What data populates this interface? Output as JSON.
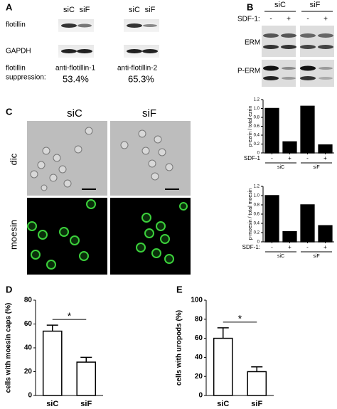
{
  "panel_a": {
    "label": "A",
    "lanes": [
      "siC",
      "siF",
      "siC",
      "siF"
    ],
    "rows": [
      "flotillin",
      "GAPDH"
    ],
    "suppression_label": [
      "flotillin",
      "suppression:"
    ],
    "antibodies": [
      "anti-flotillin-1",
      "anti-flotillin-2"
    ],
    "suppression": [
      "53.4%",
      "65.3%"
    ]
  },
  "panel_b": {
    "label": "B",
    "groups": [
      "siC",
      "siF"
    ],
    "row_label": "SDF-1:",
    "treatments": [
      "-",
      "+",
      "-",
      "+"
    ],
    "rows": [
      "ERM",
      "P-ERM"
    ]
  },
  "panel_c": {
    "label": "C",
    "columns": [
      "siC",
      "siF"
    ],
    "rows": [
      "dic",
      "moesin"
    ]
  },
  "panel_d": {
    "label": "D"
  },
  "panel_e": {
    "label": "E"
  },
  "chart_data": [
    {
      "type": "bar",
      "y_label": "p-ezrin / total ezrin",
      "row_label": "SDF-1",
      "categories": [
        "-",
        "+",
        "-",
        "+"
      ],
      "groups": [
        "siC",
        "siF"
      ],
      "values": [
        1.0,
        0.25,
        1.05,
        0.18
      ],
      "color": "#000000",
      "ylim": [
        0,
        1.2
      ],
      "yticks": [
        0,
        0.2,
        0.4,
        0.6,
        0.8,
        {
          "value": 1,
          "label": "1.0"
        },
        1.2
      ]
    },
    {
      "type": "bar",
      "y_label": "p-moesin / total moesin",
      "row_label": "SDF-1:",
      "categories": [
        "-",
        "+",
        "-",
        "+"
      ],
      "groups": [
        "siC",
        "siF"
      ],
      "values": [
        1.0,
        0.22,
        0.8,
        0.35
      ],
      "color": "#000000",
      "ylim": [
        0,
        1.2
      ],
      "yticks": [
        0,
        0.2,
        0.4,
        0.6,
        0.8,
        {
          "value": 1,
          "label": "1.0"
        },
        1.2
      ]
    },
    {
      "type": "bar",
      "y_label": "cells with moesin caps (%)",
      "categories": [
        "siC",
        "siF"
      ],
      "values": [
        54,
        28
      ],
      "errors": [
        5,
        4
      ],
      "color": "#ffffff",
      "edge_color": "#000000",
      "ylim": [
        0,
        80
      ],
      "yticks": [
        0,
        20,
        40,
        60,
        80
      ],
      "annotation": "*"
    },
    {
      "type": "bar",
      "y_label": "cells with uropods (%)",
      "categories": [
        "siC",
        "siF"
      ],
      "values": [
        60,
        25
      ],
      "errors": [
        11,
        5
      ],
      "color": "#ffffff",
      "edge_color": "#000000",
      "ylim": [
        0,
        100
      ],
      "yticks": [
        0,
        20,
        40,
        60,
        80,
        100
      ],
      "annotation": "*"
    }
  ]
}
